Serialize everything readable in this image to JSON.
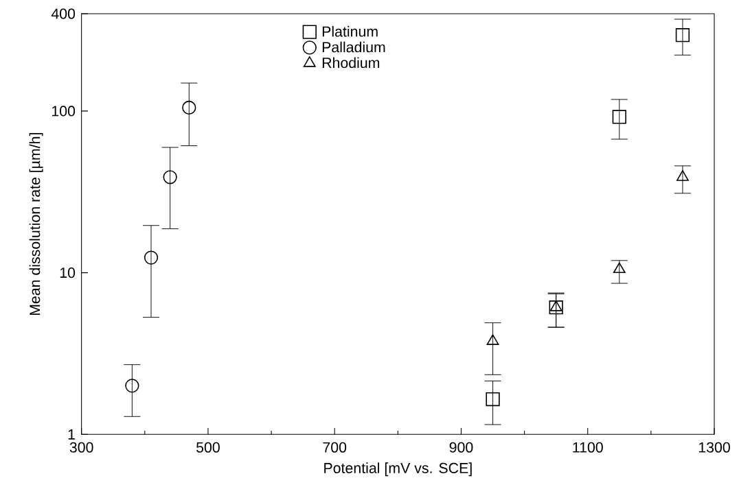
{
  "chart_data": {
    "type": "scatter",
    "xlabel": "Potential [mV vs. SCE]",
    "ylabel": "Mean dissolution rate [µm/h]",
    "series": [
      {
        "name": "Platinum",
        "color": "#000000",
        "marker": "square",
        "x": [
          950,
          1050,
          1150,
          1250
        ],
        "values": [
          1.65,
          6.1,
          92,
          295
        ],
        "errors": [
          [
            1.15,
            2.14
          ],
          [
            4.6,
            7.4
          ],
          [
            67,
            118
          ],
          [
            222,
            370
          ]
        ]
      },
      {
        "name": "Palladium",
        "color": "#000000",
        "marker": "circle",
        "x": [
          380,
          410,
          440,
          470
        ],
        "values": [
          2.0,
          12.4,
          39,
          105
        ],
        "errors": [
          [
            1.29,
            2.7
          ],
          [
            5.3,
            19.6
          ],
          [
            18.7,
            59.6
          ],
          [
            61,
            149
          ]
        ]
      },
      {
        "name": "Rhodium",
        "color": "#000000",
        "marker": "triangle",
        "x": [
          950,
          1050,
          1150,
          1250
        ],
        "values": [
          3.77,
          6.1,
          10.5,
          39
        ],
        "errors": [
          [
            2.34,
            4.9
          ],
          [
            4.6,
            7.5
          ],
          [
            8.6,
            11.9
          ],
          [
            31,
            45.8
          ]
        ]
      }
    ],
    "xlim": [
      300,
      1300
    ],
    "xticks": [
      300,
      500,
      700,
      900,
      1100,
      1300
    ],
    "ylim": [
      1,
      400
    ],
    "yticks": [
      1,
      10,
      100,
      400
    ],
    "log": "y",
    "grid": false,
    "legend": "top"
  }
}
